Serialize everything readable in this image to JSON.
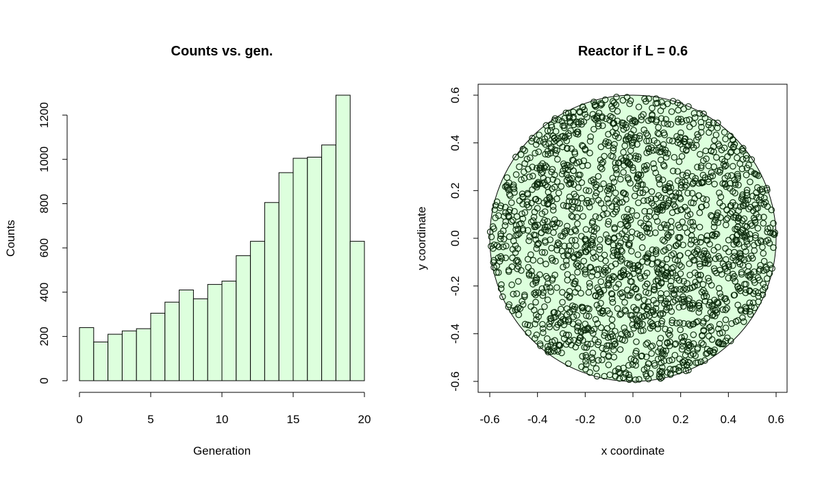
{
  "chart_data": [
    {
      "type": "bar",
      "title": "Counts vs. gen.",
      "xlabel": "Generation",
      "ylabel": "Counts",
      "bin_edges": [
        0,
        1,
        2,
        3,
        4,
        5,
        6,
        7,
        8,
        9,
        10,
        11,
        12,
        13,
        14,
        15,
        16,
        17,
        18,
        19,
        20
      ],
      "values": [
        240,
        175,
        210,
        225,
        235,
        305,
        355,
        410,
        370,
        435,
        450,
        565,
        630,
        805,
        940,
        1005,
        1010,
        1065,
        1290,
        630
      ],
      "xlim": [
        0,
        20
      ],
      "ylim": [
        0,
        1290
      ],
      "xticks": [
        "0",
        "5",
        "10",
        "15",
        "20"
      ],
      "yticks": [
        "0",
        "200",
        "400",
        "600",
        "800",
        "1000",
        "1200"
      ],
      "bar_fill": "#ddffdd",
      "bar_stroke": "#000000",
      "grid": false
    },
    {
      "type": "scatter",
      "title": "Reactor if L =  0.6",
      "xlabel": "x coordinate",
      "ylabel": "y coordinate",
      "xlim": [
        -0.6,
        0.6
      ],
      "ylim": [
        -0.6,
        0.6
      ],
      "xticks": [
        "-0.6",
        "-0.4",
        "-0.2",
        "0.0",
        "0.2",
        "0.4",
        "0.6"
      ],
      "yticks": [
        "-0.6",
        "-0.4",
        "-0.2",
        "0.0",
        "0.2",
        "0.4",
        "0.6"
      ],
      "circle": {
        "center": [
          0,
          0
        ],
        "radius": 0.6,
        "fill": "#ddffdd",
        "stroke": "#000000"
      },
      "point_style": {
        "shape": "open-circle",
        "color": "#0f2d0f"
      },
      "point_count_estimate": 2000,
      "grid": false
    }
  ]
}
